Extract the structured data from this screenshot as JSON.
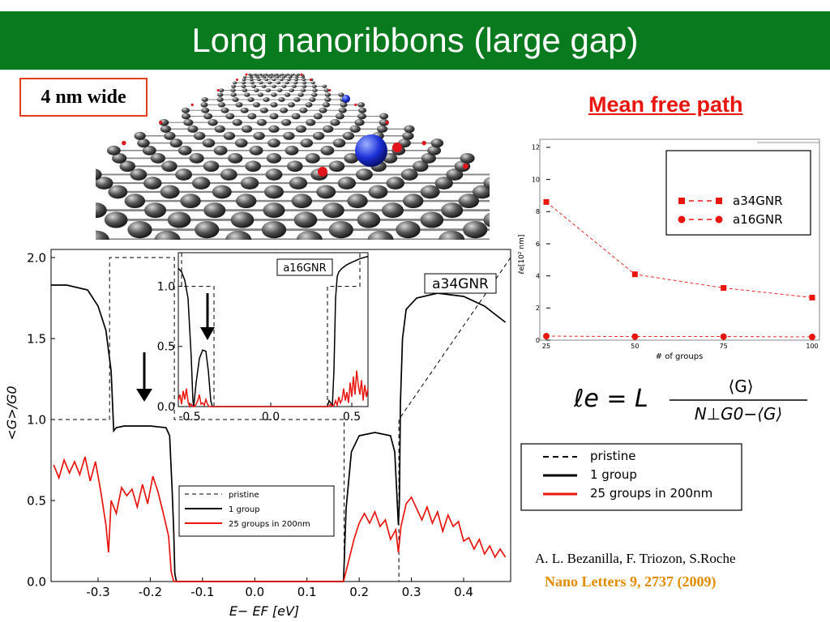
{
  "slide": {
    "title": "Long nanoribbons (large gap)",
    "width_label": "4 nm wide",
    "mfp_heading": "Mean free path",
    "citation_authors": "A. L. Bezanilla, F. Triozon, S.Roche",
    "citation_journal": "Nano Letters 9, 2737 (2009)"
  },
  "formula": {
    "lhs": "ℓe = L",
    "numerator": "⟨G⟩",
    "denominator": "N⊥G0−⟨G⟩"
  },
  "legend_box": {
    "items": [
      {
        "label": "pristine",
        "style": "dashed",
        "color": "#000000"
      },
      {
        "label": "1 group",
        "style": "solid",
        "color": "#000000"
      },
      {
        "label": "25 groups in 200nm",
        "style": "solid",
        "color": "#e8160f"
      }
    ]
  },
  "chart_data": [
    {
      "type": "line",
      "id": "main",
      "xlabel": "E− EF  [eV]",
      "ylabel": "<G>/G0",
      "xlim": [
        -0.39,
        0.49
      ],
      "ylim": [
        0,
        2.05
      ],
      "xticks": [
        "-0.3",
        "-0.2",
        "-0.1",
        "0.0",
        "0.1",
        "0.2",
        "0.3",
        "0.4"
      ],
      "xtick_values": [
        -0.3,
        -0.2,
        -0.1,
        0.0,
        0.1,
        0.2,
        0.3,
        0.4
      ],
      "yticks": [
        "0.0",
        "0.5",
        "1.0",
        "1.5",
        "2.0"
      ],
      "ytick_values": [
        0,
        0.5,
        1.0,
        1.5,
        2.0
      ],
      "panel_label": "a34GNR",
      "legend": {
        "position": "bottom-center",
        "items": [
          "pristine",
          "1 group",
          "25 groups in 200nm"
        ]
      },
      "series": [
        {
          "name": "pristine",
          "style": "dashed",
          "color": "#000000",
          "x": [
            -0.39,
            -0.278,
            -0.278,
            -0.154,
            -0.154,
            0.171,
            0.171,
            0.276,
            0.276,
            0.49
          ],
          "y": [
            1.0,
            1.0,
            2.0,
            2.0,
            1.0,
            1.0,
            0.0,
            0.0,
            1.0,
            2.0
          ]
        },
        {
          "name": "1 group",
          "style": "solid",
          "color": "#000000",
          "x": [
            -0.39,
            -0.36,
            -0.32,
            -0.3,
            -0.285,
            -0.275,
            -0.27,
            -0.265,
            -0.25,
            -0.2,
            -0.17,
            -0.163,
            -0.158,
            -0.155,
            -0.153,
            -0.15,
            0.17,
            0.175,
            0.185,
            0.2,
            0.23,
            0.26,
            0.268,
            0.272,
            0.275,
            0.277,
            0.279,
            0.283,
            0.29,
            0.31,
            0.35,
            0.4,
            0.44,
            0.48
          ],
          "y": [
            1.83,
            1.83,
            1.8,
            1.7,
            1.55,
            1.3,
            0.93,
            0.95,
            0.96,
            0.96,
            0.95,
            0.9,
            0.55,
            0.3,
            0.05,
            0.0,
            0.0,
            0.45,
            0.8,
            0.9,
            0.92,
            0.9,
            0.8,
            0.55,
            0.35,
            0.5,
            1.1,
            1.5,
            1.68,
            1.75,
            1.78,
            1.76,
            1.7,
            1.6
          ]
        },
        {
          "name": "25 groups in 200nm",
          "style": "solid",
          "color": "#e8160f",
          "x": [
            -0.385,
            -0.375,
            -0.365,
            -0.355,
            -0.345,
            -0.335,
            -0.325,
            -0.315,
            -0.305,
            -0.295,
            -0.285,
            -0.28,
            -0.275,
            -0.265,
            -0.255,
            -0.245,
            -0.235,
            -0.225,
            -0.215,
            -0.205,
            -0.195,
            -0.185,
            -0.175,
            -0.165,
            -0.16,
            -0.155,
            0.17,
            0.18,
            0.19,
            0.2,
            0.21,
            0.22,
            0.23,
            0.24,
            0.25,
            0.26,
            0.27,
            0.275,
            0.28,
            0.29,
            0.3,
            0.31,
            0.32,
            0.33,
            0.34,
            0.35,
            0.36,
            0.37,
            0.38,
            0.39,
            0.4,
            0.41,
            0.42,
            0.43,
            0.44,
            0.45,
            0.46,
            0.47,
            0.48
          ],
          "y": [
            0.72,
            0.64,
            0.75,
            0.67,
            0.74,
            0.66,
            0.77,
            0.62,
            0.74,
            0.56,
            0.35,
            0.18,
            0.5,
            0.42,
            0.58,
            0.53,
            0.57,
            0.46,
            0.6,
            0.48,
            0.65,
            0.55,
            0.42,
            0.28,
            0.06,
            0.0,
            0.0,
            0.13,
            0.26,
            0.36,
            0.42,
            0.36,
            0.43,
            0.34,
            0.38,
            0.26,
            0.32,
            0.18,
            0.34,
            0.48,
            0.52,
            0.45,
            0.38,
            0.46,
            0.36,
            0.43,
            0.31,
            0.41,
            0.34,
            0.37,
            0.25,
            0.27,
            0.2,
            0.26,
            0.17,
            0.22,
            0.15,
            0.2,
            0.15
          ]
        }
      ]
    },
    {
      "type": "line",
      "id": "inset",
      "xlim": [
        -0.57,
        0.6
      ],
      "ylim": [
        0,
        1.28
      ],
      "xticks": [
        "-0.5",
        "0.0",
        "0.5"
      ],
      "xtick_values": [
        -0.5,
        0.0,
        0.5
      ],
      "yticks": [
        "0.0",
        "0.5",
        "1.0"
      ],
      "ytick_values": [
        0,
        0.5,
        1.0
      ],
      "panel_label": "a16GNR",
      "series": [
        {
          "name": "pristine",
          "style": "dashed",
          "color": "#000000",
          "x": [
            -0.55,
            -0.55,
            -0.35,
            -0.35,
            0.35,
            0.35,
            0.55,
            0.55
          ],
          "y": [
            1.28,
            1.0,
            1.0,
            0.0,
            0.0,
            1.0,
            1.0,
            1.28
          ]
        },
        {
          "name": "1 group",
          "style": "solid",
          "color": "#000000",
          "x": [
            -0.57,
            -0.55,
            -0.53,
            -0.51,
            -0.49,
            -0.48,
            -0.475,
            -0.46,
            -0.44,
            -0.42,
            -0.4,
            -0.385,
            -0.37,
            -0.36,
            0.35,
            0.36,
            0.37,
            0.38,
            0.39,
            0.4,
            0.41,
            0.42,
            0.44,
            0.47,
            0.5,
            0.55,
            0.6
          ],
          "y": [
            1.15,
            1.12,
            1.05,
            0.9,
            0.4,
            0.05,
            0.0,
            0.2,
            0.4,
            0.47,
            0.46,
            0.3,
            0.05,
            0.0,
            0.0,
            0.05,
            0.03,
            0.0,
            0.3,
            0.9,
            1.08,
            1.12,
            1.15,
            1.18,
            1.2,
            1.23,
            1.25
          ]
        },
        {
          "name": "25 groups in 200nm",
          "style": "solid",
          "color": "#e8160f",
          "x": [
            -0.57,
            -0.56,
            -0.55,
            -0.54,
            -0.53,
            -0.52,
            -0.51,
            -0.5,
            -0.49,
            -0.48,
            -0.47,
            -0.46,
            -0.45,
            -0.44,
            -0.43,
            -0.42,
            -0.41,
            -0.4,
            -0.39,
            -0.38,
            -0.37,
            -0.36,
            0.36,
            0.37,
            0.38,
            0.39,
            0.4,
            0.41,
            0.42,
            0.43,
            0.44,
            0.45,
            0.46,
            0.47,
            0.48,
            0.49,
            0.5,
            0.51,
            0.52,
            0.53,
            0.54,
            0.55,
            0.56,
            0.57,
            0.58,
            0.59,
            0.6
          ],
          "y": [
            0.05,
            0.1,
            0.02,
            0.13,
            0.06,
            0.15,
            0.04,
            0.0,
            0.02,
            0.0,
            0.0,
            0.02,
            0.05,
            0.1,
            0.02,
            0.03,
            0.01,
            0.06,
            0.02,
            0.0,
            0.0,
            0.0,
            0.0,
            0.02,
            0.0,
            0.01,
            0.05,
            0.01,
            0.08,
            0.03,
            0.06,
            0.15,
            0.05,
            0.12,
            0.03,
            0.2,
            0.08,
            0.25,
            0.1,
            0.3,
            0.18,
            0.1,
            0.22,
            0.05,
            0.18,
            0.08,
            0.15
          ]
        }
      ]
    },
    {
      "type": "line",
      "id": "mean_free_path",
      "xlabel": "# of groups",
      "ylabel": "ℓe[10² nm]",
      "xlim": [
        25,
        100
      ],
      "ylim": [
        0,
        12.5
      ],
      "xticks": [
        "25",
        "50",
        "75",
        "100"
      ],
      "xtick_values": [
        25,
        50,
        75,
        100
      ],
      "yticks": [
        "0",
        "2",
        "4",
        "6",
        "8",
        "10",
        "12"
      ],
      "ytick_values": [
        0,
        2,
        4,
        6,
        8,
        10,
        12
      ],
      "legend": {
        "position": "top-right",
        "items": [
          "a34GNR",
          "a16GNR"
        ]
      },
      "series": [
        {
          "name": "a34GNR",
          "marker": "square",
          "color": "#e8160f",
          "x": [
            25,
            50,
            75,
            100
          ],
          "y": [
            8.6,
            4.1,
            3.25,
            2.65
          ]
        },
        {
          "name": "a16GNR",
          "marker": "circle",
          "color": "#e8160f",
          "x": [
            25,
            50,
            75,
            100
          ],
          "y": [
            0.25,
            0.22,
            0.22,
            0.2
          ]
        }
      ]
    }
  ]
}
